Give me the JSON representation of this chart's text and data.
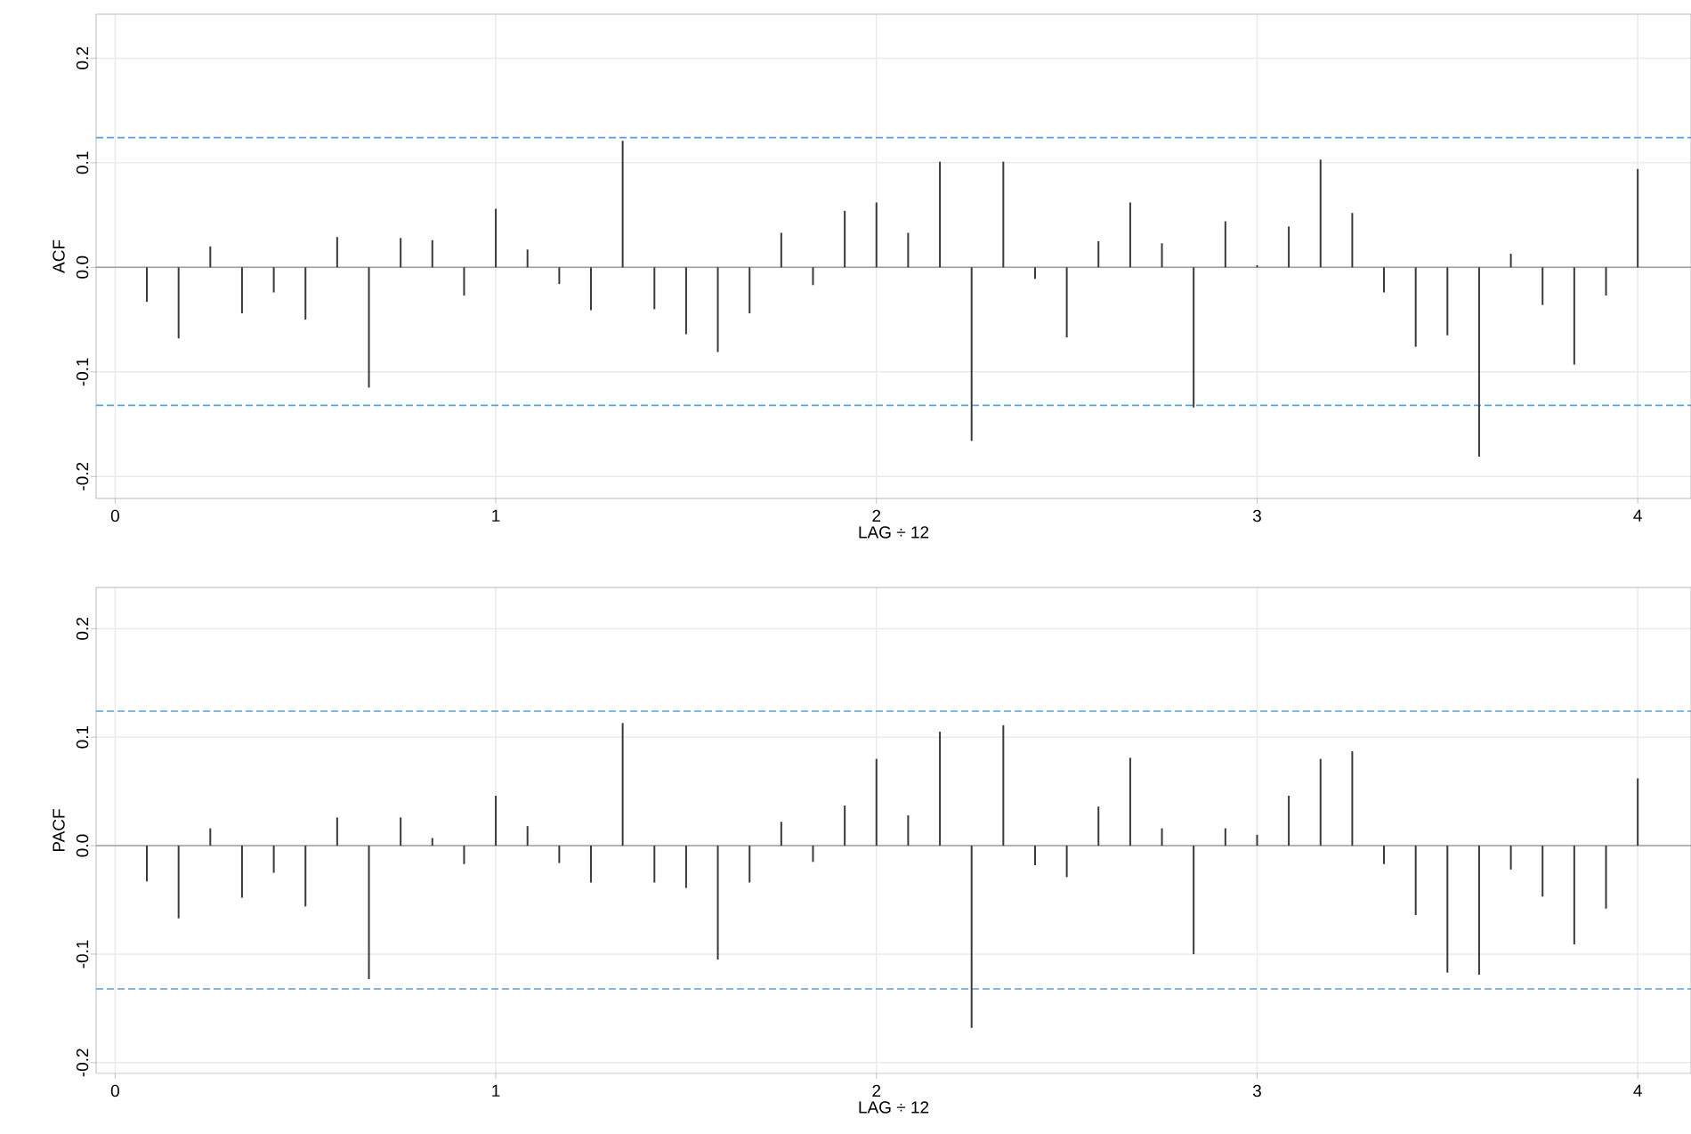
{
  "chart_data": [
    {
      "type": "bar",
      "xlabel": "LAG ÷ 12",
      "ylabel": "ACF",
      "color": "#3a3a3a",
      "x": [
        0.0833,
        0.1667,
        0.25,
        0.3333,
        0.4167,
        0.5,
        0.5833,
        0.6667,
        0.75,
        0.8333,
        0.9167,
        1.0,
        1.0833,
        1.1667,
        1.25,
        1.3333,
        1.4167,
        1.5,
        1.5833,
        1.6667,
        1.75,
        1.8333,
        1.9167,
        2.0,
        2.0833,
        2.1667,
        2.25,
        2.3333,
        2.4167,
        2.5,
        2.5833,
        2.6667,
        2.75,
        2.8333,
        2.9167,
        3.0,
        3.0833,
        3.1667,
        3.25,
        3.3333,
        3.4167,
        3.5,
        3.5833,
        3.6667,
        3.75,
        3.8333,
        3.9167,
        4.0
      ],
      "values": [
        -0.033,
        -0.068,
        0.02,
        -0.044,
        -0.024,
        -0.05,
        0.029,
        -0.115,
        0.028,
        0.026,
        -0.027,
        0.056,
        0.017,
        -0.016,
        -0.041,
        0.121,
        -0.04,
        -0.064,
        -0.081,
        -0.044,
        0.033,
        -0.017,
        0.054,
        0.062,
        0.033,
        0.101,
        -0.166,
        0.101,
        -0.011,
        -0.067,
        0.025,
        0.062,
        0.023,
        -0.134,
        0.044,
        0.002,
        0.039,
        0.103,
        0.052,
        -0.024,
        -0.076,
        -0.065,
        -0.181,
        0.013,
        -0.036,
        -0.093,
        -0.027,
        0.094
      ],
      "xlim": [
        -0.05,
        4.14
      ],
      "ylim": [
        -0.221,
        0.242
      ],
      "xticks": [
        0,
        1,
        2,
        3,
        4
      ],
      "yticks": [
        -0.2,
        -0.1,
        {
          "value": 0,
          "label": "0.0"
        },
        0.1,
        0.2
      ],
      "ref_lines": [
        {
          "axis": "y",
          "value": 0,
          "color": "#a0a0a0",
          "line_style": "solid"
        },
        {
          "axis": "y",
          "value": 0.124,
          "color": "#5a9fe0",
          "line_style": "dashed"
        },
        {
          "axis": "y",
          "value": -0.132,
          "color": "#5a9fe0",
          "line_style": "dashed"
        }
      ],
      "grid": true
    },
    {
      "type": "bar",
      "xlabel": "LAG ÷ 12",
      "ylabel": "PACF",
      "color": "#3a3a3a",
      "x": [
        0.0833,
        0.1667,
        0.25,
        0.3333,
        0.4167,
        0.5,
        0.5833,
        0.6667,
        0.75,
        0.8333,
        0.9167,
        1.0,
        1.0833,
        1.1667,
        1.25,
        1.3333,
        1.4167,
        1.5,
        1.5833,
        1.6667,
        1.75,
        1.8333,
        1.9167,
        2.0,
        2.0833,
        2.1667,
        2.25,
        2.3333,
        2.4167,
        2.5,
        2.5833,
        2.6667,
        2.75,
        2.8333,
        2.9167,
        3.0,
        3.0833,
        3.1667,
        3.25,
        3.3333,
        3.4167,
        3.5,
        3.5833,
        3.6667,
        3.75,
        3.8333,
        3.9167,
        4.0
      ],
      "values": [
        -0.033,
        -0.067,
        0.016,
        -0.048,
        -0.025,
        -0.056,
        0.026,
        -0.123,
        0.026,
        0.007,
        -0.017,
        0.046,
        0.018,
        -0.016,
        -0.034,
        0.113,
        -0.034,
        -0.039,
        -0.105,
        -0.034,
        0.022,
        -0.015,
        0.037,
        0.08,
        0.028,
        0.105,
        -0.168,
        0.111,
        -0.018,
        -0.029,
        0.036,
        0.081,
        0.016,
        -0.1,
        0.016,
        0.01,
        0.046,
        0.08,
        0.087,
        -0.017,
        -0.064,
        -0.117,
        -0.119,
        -0.022,
        -0.047,
        -0.091,
        -0.058,
        0.062
      ],
      "xlim": [
        -0.05,
        4.14
      ],
      "ylim": [
        -0.21,
        0.238
      ],
      "xticks": [
        0,
        1,
        2,
        3,
        4
      ],
      "yticks": [
        -0.2,
        -0.1,
        {
          "value": 0,
          "label": "0.0"
        },
        0.1,
        0.2
      ],
      "ref_lines": [
        {
          "axis": "y",
          "value": 0,
          "color": "#a0a0a0",
          "line_style": "solid"
        },
        {
          "axis": "y",
          "value": 0.124,
          "color": "#5a9fe0",
          "line_style": "dashed"
        },
        {
          "axis": "y",
          "value": -0.132,
          "color": "#5a9fe0",
          "line_style": "dashed"
        }
      ],
      "grid": true
    }
  ]
}
